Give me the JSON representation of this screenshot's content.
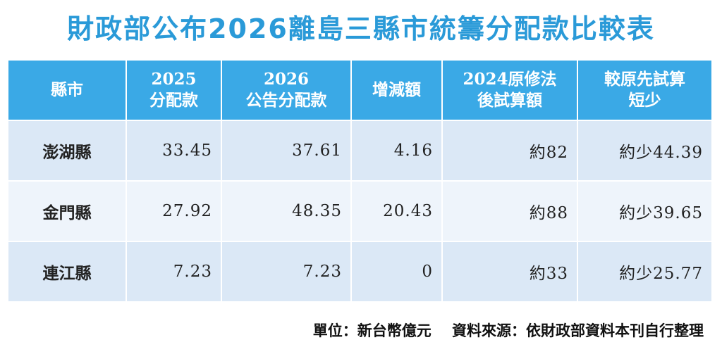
{
  "title": "財政部公布2026離島三縣市統籌分配款比較表",
  "table": {
    "headers": [
      {
        "line1": "縣市",
        "line2": ""
      },
      {
        "line1": "2025",
        "line2": "分配款"
      },
      {
        "line1": "2026",
        "line2": "公告分配款"
      },
      {
        "line1": "增減額",
        "line2": ""
      },
      {
        "line1": "2024原修法",
        "line2": "後試算額"
      },
      {
        "line1": "較原先試算",
        "line2": "短少"
      }
    ],
    "rows": [
      {
        "county": "澎湖縣",
        "y2025": "33.45",
        "y2026": "37.61",
        "change": "4.16",
        "trial2024": "約82",
        "shortfall": "約少44.39"
      },
      {
        "county": "金門縣",
        "y2025": "27.92",
        "y2026": "48.35",
        "change": "20.43",
        "trial2024": "約88",
        "shortfall": "約少39.65"
      },
      {
        "county": "連江縣",
        "y2025": "7.23",
        "y2026": "7.23",
        "change": "0",
        "trial2024": "約33",
        "shortfall": "約少25.77"
      }
    ]
  },
  "footer": {
    "unit": "單位：新台幣億元",
    "source": "資料來源：依財政部資料本刊自行整理"
  }
}
